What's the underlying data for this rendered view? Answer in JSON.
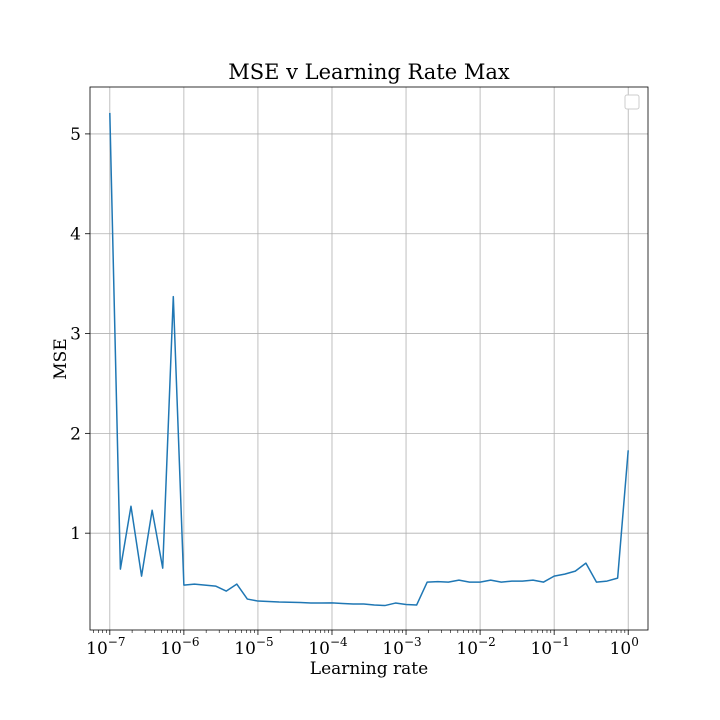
{
  "chart_data": {
    "type": "line",
    "title": "MSE v Learning Rate Max",
    "xlabel": "Learning rate",
    "ylabel": "MSE",
    "xscale": "log",
    "xlim": [
      5.4e-08,
      1.85
    ],
    "ylim": [
      0.03,
      5.47
    ],
    "grid": true,
    "legend": "top-right",
    "x_ticks": [
      {
        "value": 1e-07,
        "base": "10",
        "exp": "−7"
      },
      {
        "value": 1e-06,
        "base": "10",
        "exp": "−6"
      },
      {
        "value": 1e-05,
        "base": "10",
        "exp": "−5"
      },
      {
        "value": 0.0001,
        "base": "10",
        "exp": "−4"
      },
      {
        "value": 0.001,
        "base": "10",
        "exp": "−3"
      },
      {
        "value": 0.01,
        "base": "10",
        "exp": "−2"
      },
      {
        "value": 0.1,
        "base": "10",
        "exp": "−1"
      },
      {
        "value": 1,
        "base": "10",
        "exp": "0"
      }
    ],
    "y_ticks": [
      {
        "value": 1,
        "label": "1"
      },
      {
        "value": 2,
        "label": "2"
      },
      {
        "value": 3,
        "label": "3"
      },
      {
        "value": 4,
        "label": "4"
      },
      {
        "value": 5,
        "label": "5"
      }
    ],
    "series": [
      {
        "color": "#1f77b4",
        "x": [
          1e-07,
          1.389e-07,
          1.931e-07,
          2.683e-07,
          3.728e-07,
          5.179e-07,
          7.197e-07,
          1e-06,
          1.389e-06,
          1.931e-06,
          2.683e-06,
          3.728e-06,
          5.179e-06,
          7.197e-06,
          1e-05,
          1.389e-05,
          1.931e-05,
          2.683e-05,
          3.728e-05,
          5.179e-05,
          7.197e-05,
          0.0001,
          0.0001389,
          0.0001931,
          0.0002683,
          0.0003728,
          0.0005179,
          0.0007197,
          0.001,
          0.001389,
          0.001931,
          0.002683,
          0.003728,
          0.005179,
          0.007197,
          0.01,
          0.01389,
          0.01931,
          0.02683,
          0.03728,
          0.05179,
          0.07197,
          0.1,
          0.1389,
          0.1931,
          0.2683,
          0.3728,
          0.5179,
          0.7197,
          1
        ],
        "y": [
          5.21,
          0.64,
          1.27,
          0.57,
          1.23,
          0.65,
          3.37,
          0.48,
          0.49,
          0.48,
          0.47,
          0.42,
          0.49,
          0.34,
          0.32,
          0.315,
          0.31,
          0.308,
          0.305,
          0.3,
          0.3,
          0.302,
          0.295,
          0.29,
          0.29,
          0.28,
          0.275,
          0.3,
          0.285,
          0.28,
          0.51,
          0.515,
          0.51,
          0.53,
          0.51,
          0.51,
          0.53,
          0.51,
          0.52,
          0.52,
          0.53,
          0.51,
          0.57,
          0.59,
          0.62,
          0.7,
          0.51,
          0.52,
          0.55,
          1.83
        ]
      }
    ]
  }
}
